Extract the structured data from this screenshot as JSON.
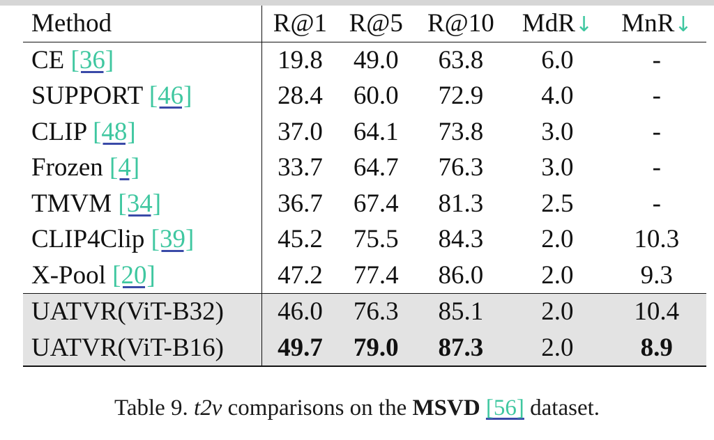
{
  "table": {
    "headers": {
      "method": "Method",
      "r1": "R@1",
      "r5": "R@5",
      "r10": "R@10",
      "mdr": "MdR",
      "mnr": "MnR",
      "arrow": "↓"
    },
    "rows": [
      {
        "method": "CE",
        "cite": "[36]",
        "r1": "19.8",
        "r5": "49.0",
        "r10": "63.8",
        "mdr": "6.0",
        "mnr": "-"
      },
      {
        "method": "SUPPORT",
        "cite": "[46]",
        "r1": "28.4",
        "r5": "60.0",
        "r10": "72.9",
        "mdr": "4.0",
        "mnr": "-"
      },
      {
        "method": "CLIP",
        "cite": "[48]",
        "r1": "37.0",
        "r5": "64.1",
        "r10": "73.8",
        "mdr": "3.0",
        "mnr": "-"
      },
      {
        "method": "Frozen",
        "cite": "[4]",
        "r1": "33.7",
        "r5": "64.7",
        "r10": "76.3",
        "mdr": "3.0",
        "mnr": "-"
      },
      {
        "method": "TMVM",
        "cite": "[34]",
        "r1": "36.7",
        "r5": "67.4",
        "r10": "81.3",
        "mdr": "2.5",
        "mnr": "-"
      },
      {
        "method": "CLIP4Clip",
        "cite": "[39]",
        "r1": "45.2",
        "r5": "75.5",
        "r10": "84.3",
        "mdr": "2.0",
        "mnr": "10.3"
      },
      {
        "method": "X-Pool",
        "cite": "[20]",
        "r1": "47.2",
        "r5": "77.4",
        "r10": "86.0",
        "mdr": "2.0",
        "mnr": "9.3"
      },
      {
        "method": "UATVR(ViT-B32)",
        "r1": "46.0",
        "r5": "76.3",
        "r10": "85.1",
        "mdr": "2.0",
        "mnr": "10.4"
      },
      {
        "method": "UATVR(ViT-B16)",
        "r1": "49.7",
        "r5": "79.0",
        "r10": "87.3",
        "mdr": "2.0",
        "mnr": "8.9"
      }
    ]
  },
  "caption": {
    "prefix": "Table 9. ",
    "italic": "t2v",
    "middle": " comparisons on the ",
    "bold": "MSVD",
    "cite": "[56]",
    "suffix": " dataset."
  },
  "colors": {
    "citation_text": "#3fc7a0",
    "citation_underline": "#3a4aa8",
    "highlight_row_bg": "#e3e3e3"
  }
}
